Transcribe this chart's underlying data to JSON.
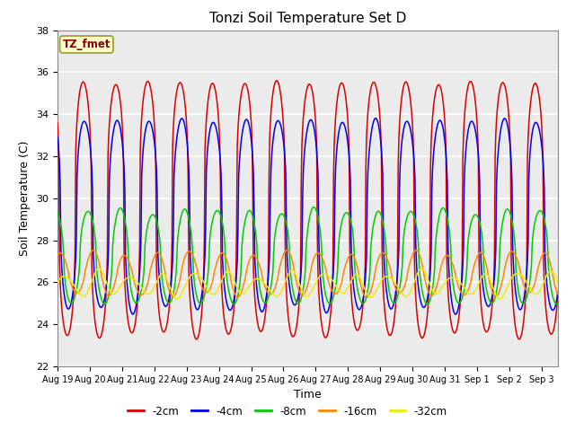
{
  "title": "Tonzi Soil Temperature Set D",
  "xlabel": "Time",
  "ylabel": "Soil Temperature (C)",
  "ylim": [
    22,
    38
  ],
  "background_color": "#ebebeb",
  "grid_color": "white",
  "series_order": [
    "-2cm",
    "-4cm",
    "-8cm",
    "-16cm",
    "-32cm"
  ],
  "series": {
    "-2cm": {
      "color": "#dd0000",
      "amplitude": 6.0,
      "mean": 29.5,
      "phase_lag": 0.0,
      "sharpness": 3.0
    },
    "-4cm": {
      "color": "#0000ee",
      "amplitude": 4.5,
      "mean": 29.2,
      "phase_lag": 1.0,
      "sharpness": 2.5
    },
    "-8cm": {
      "color": "#00cc00",
      "amplitude": 2.2,
      "mean": 27.2,
      "phase_lag": 3.5,
      "sharpness": 1.8
    },
    "-16cm": {
      "color": "#ff8800",
      "amplitude": 1.0,
      "mean": 26.4,
      "phase_lag": 7.0,
      "sharpness": 1.2
    },
    "-32cm": {
      "color": "#eeee00",
      "amplitude": 0.5,
      "mean": 25.9,
      "phase_lag": 11.0,
      "sharpness": 1.0
    }
  },
  "legend_label": "TZ_fmet",
  "xtick_labels": [
    "Aug 19",
    "Aug 20",
    "Aug 21",
    "Aug 22",
    "Aug 23",
    "Aug 24",
    "Aug 25",
    "Aug 26",
    "Aug 27",
    "Aug 28",
    "Aug 29",
    "Aug 30",
    "Aug 31",
    "Sep 1",
    "Sep 2",
    "Sep 3"
  ],
  "xtick_positions": [
    0,
    1,
    2,
    3,
    4,
    5,
    6,
    7,
    8,
    9,
    10,
    11,
    12,
    13,
    14,
    15
  ],
  "ytick_values": [
    22,
    24,
    26,
    28,
    30,
    32,
    34,
    36,
    38
  ],
  "figsize": [
    6.4,
    4.8
  ],
  "dpi": 100
}
